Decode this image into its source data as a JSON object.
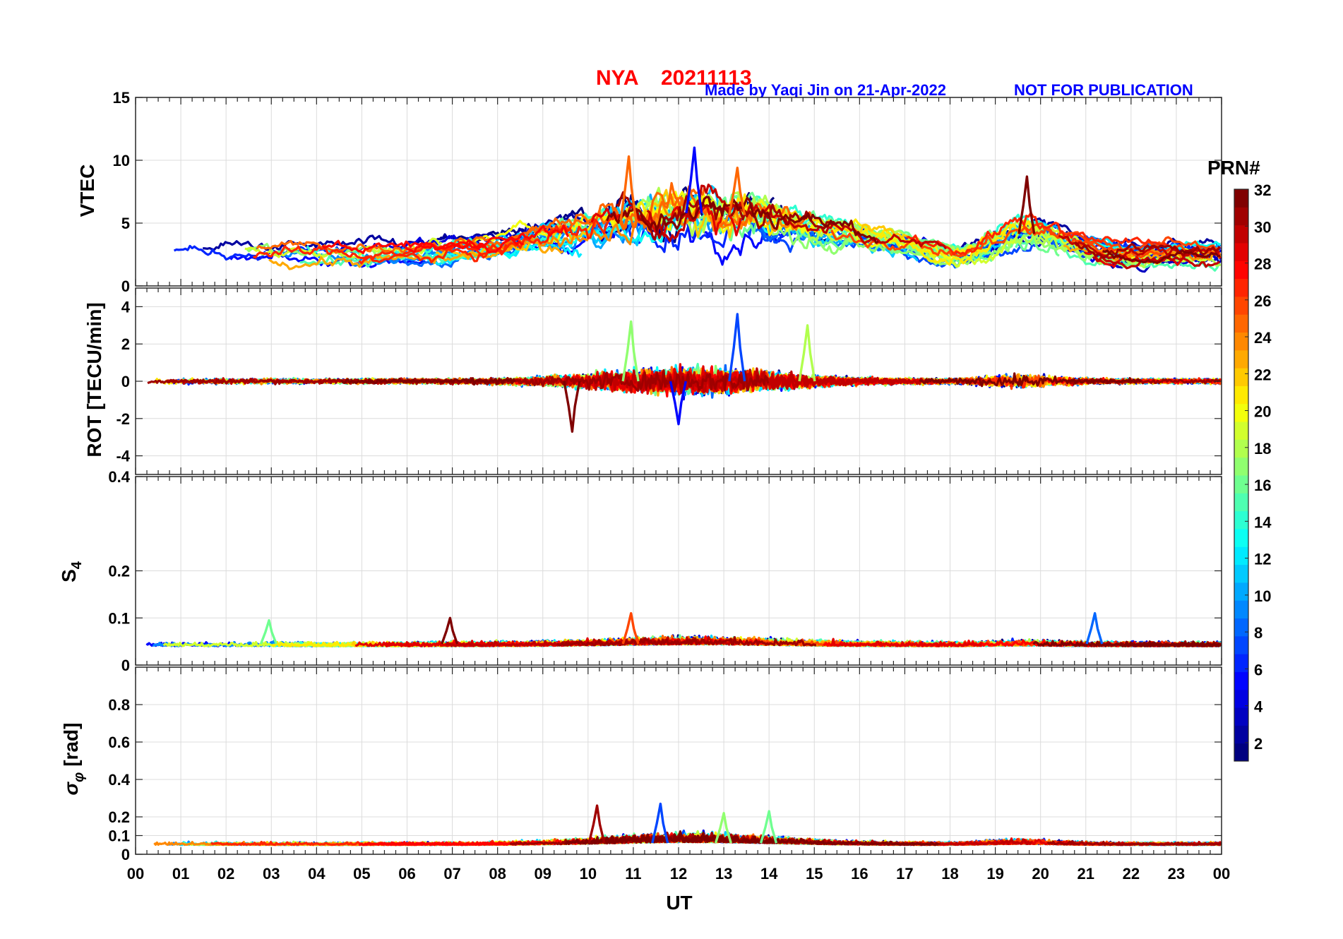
{
  "chart_data": {
    "type": "line",
    "title": {
      "station": "NYA",
      "date": "20211113",
      "credit": "Made by Yaqi Jin on 21-Apr-2022",
      "notice": "NOT FOR PUBLICATION",
      "title_color": "#ff0000",
      "credit_color": "#0000ff"
    },
    "xlabel": "UT",
    "x_ticks": [
      "00",
      "01",
      "02",
      "03",
      "04",
      "05",
      "06",
      "07",
      "08",
      "09",
      "10",
      "11",
      "12",
      "13",
      "14",
      "15",
      "16",
      "17",
      "18",
      "19",
      "20",
      "21",
      "22",
      "23",
      "00"
    ],
    "xlim": [
      0,
      24
    ],
    "panels": [
      {
        "id": "vtec",
        "ylabel": "VTEC",
        "ylim": [
          0,
          15
        ],
        "yticks": [
          0,
          5,
          10,
          15
        ],
        "ytick_labels": [
          "0",
          "5",
          "10",
          "15"
        ],
        "description": "Vertical TEC per satellite, ~2-5 TECU baseline, enhancement to ~6-11 TECU between 09-16 UT, secondary bump ~8.7 TECU near 19.6 UT",
        "peaks": [
          {
            "x": 10.9,
            "y": 10.3,
            "prn": 25
          },
          {
            "x": 12.35,
            "y": 11.0,
            "prn": 5
          },
          {
            "x": 13.3,
            "y": 9.4,
            "prn": 25
          },
          {
            "x": 19.7,
            "y": 8.7,
            "prn": 32
          }
        ]
      },
      {
        "id": "rot",
        "ylabel": "ROT [TECU/min]",
        "ylim": [
          -5,
          5
        ],
        "yticks": [
          -4,
          -2,
          0,
          2,
          4
        ],
        "ytick_labels": [
          "-4",
          "-2",
          "0",
          "2",
          "4"
        ],
        "description": "Rate of TEC change fluctuating around 0, strongest spikes between 09-15 UT",
        "peaks": [
          {
            "x": 13.3,
            "y": 3.6,
            "prn": 7
          },
          {
            "x": 10.95,
            "y": 3.2,
            "prn": 17
          },
          {
            "x": 14.85,
            "y": 3.0,
            "prn": 18
          },
          {
            "x": 9.65,
            "y": -2.7,
            "prn": 32
          },
          {
            "x": 12.0,
            "y": -2.3,
            "prn": 5
          }
        ]
      },
      {
        "id": "s4",
        "ylabel": "S4",
        "ylabel_main": "S",
        "ylabel_sub": "4",
        "ylim": [
          0,
          0.4
        ],
        "yticks": [
          0,
          0.1,
          0.2,
          0.4
        ],
        "ytick_labels": [
          "0",
          "0.1",
          "0.2",
          "0.4"
        ],
        "description": "Amplitude scintillation index mostly 0.03-0.07, small peaks ~0.1",
        "peaks": [
          {
            "x": 10.95,
            "y": 0.11,
            "prn": 26
          },
          {
            "x": 21.2,
            "y": 0.11,
            "prn": 8
          },
          {
            "x": 6.95,
            "y": 0.1,
            "prn": 32
          },
          {
            "x": 2.95,
            "y": 0.095,
            "prn": 16
          }
        ]
      },
      {
        "id": "sigphi",
        "ylabel": "σφ [rad]",
        "ylabel_main": "σ",
        "ylabel_sub": "φ",
        "ylabel_unit": "[rad]",
        "ylim": [
          0,
          1
        ],
        "yticks": [
          0,
          0.1,
          0.2,
          0.4,
          0.6,
          0.8
        ],
        "ytick_labels": [
          "0",
          "0.1",
          "0.2",
          "0.4",
          "0.6",
          "0.8"
        ],
        "description": "Phase scintillation index mostly 0.03-0.1 rad, peaks ~0.25 rad near 10 and 11.6 UT",
        "peaks": [
          {
            "x": 10.2,
            "y": 0.26,
            "prn": 31
          },
          {
            "x": 11.6,
            "y": 0.27,
            "prn": 7
          },
          {
            "x": 13.0,
            "y": 0.22,
            "prn": 17
          },
          {
            "x": 14.0,
            "y": 0.23,
            "prn": 16
          }
        ]
      }
    ],
    "colorbar": {
      "label": "PRN#",
      "range": [
        1,
        32
      ],
      "ticks": [
        "2",
        "4",
        "6",
        "8",
        "10",
        "12",
        "14",
        "16",
        "18",
        "20",
        "22",
        "24",
        "26",
        "28",
        "30",
        "32"
      ],
      "colormap": "jet"
    },
    "series_count": 32
  }
}
